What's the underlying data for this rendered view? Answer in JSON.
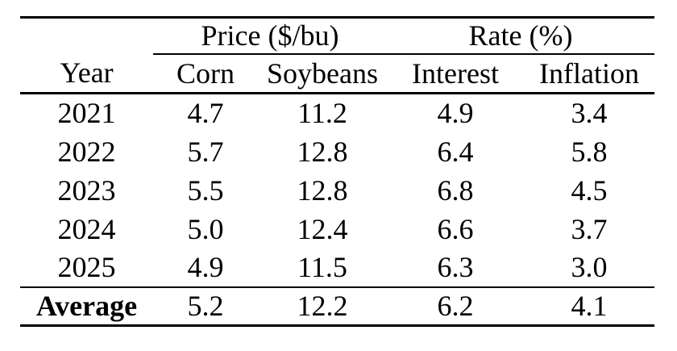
{
  "table": {
    "group_headers": [
      {
        "label": "Price ($/bu)",
        "span": 2
      },
      {
        "label": "Rate (%)",
        "span": 2
      }
    ],
    "column_headers": [
      "Year",
      "Corn",
      "Soybeans",
      "Interest",
      "Inflation"
    ],
    "rows": [
      [
        "2021",
        "4.7",
        "11.2",
        "4.9",
        "3.4"
      ],
      [
        "2022",
        "5.7",
        "12.8",
        "6.4",
        "5.8"
      ],
      [
        "2023",
        "5.5",
        "12.8",
        "6.8",
        "4.5"
      ],
      [
        "2024",
        "5.0",
        "12.4",
        "6.6",
        "3.7"
      ],
      [
        "2025",
        "4.9",
        "11.5",
        "6.3",
        "3.0"
      ]
    ],
    "footer_row": [
      "Average",
      "5.2",
      "12.2",
      "6.2",
      "4.1"
    ]
  },
  "colors": {
    "text": "#000000",
    "background": "#ffffff",
    "rule": "#000000"
  },
  "chart_data": {
    "type": "table",
    "title": "",
    "column_groups": [
      {
        "label": "Price ($/bu)",
        "columns": [
          "Corn",
          "Soybeans"
        ]
      },
      {
        "label": "Rate (%)",
        "columns": [
          "Interest",
          "Inflation"
        ]
      }
    ],
    "columns": [
      "Year",
      "Corn",
      "Soybeans",
      "Interest",
      "Inflation"
    ],
    "rows": [
      {
        "Year": 2021,
        "Corn": 4.7,
        "Soybeans": 11.2,
        "Interest": 4.9,
        "Inflation": 3.4
      },
      {
        "Year": 2022,
        "Corn": 5.7,
        "Soybeans": 12.8,
        "Interest": 6.4,
        "Inflation": 5.8
      },
      {
        "Year": 2023,
        "Corn": 5.5,
        "Soybeans": 12.8,
        "Interest": 6.8,
        "Inflation": 4.5
      },
      {
        "Year": 2024,
        "Corn": 5.0,
        "Soybeans": 12.4,
        "Interest": 6.6,
        "Inflation": 3.7
      },
      {
        "Year": 2025,
        "Corn": 4.9,
        "Soybeans": 11.5,
        "Interest": 6.3,
        "Inflation": 3.0
      }
    ],
    "average": {
      "label": "Average",
      "Corn": 5.2,
      "Soybeans": 12.2,
      "Interest": 6.2,
      "Inflation": 4.1
    }
  }
}
